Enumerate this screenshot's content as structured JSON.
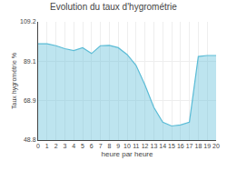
{
  "chart_data": {
    "type": "area",
    "title": "Evolution du taux d'hygrométrie",
    "x_label": "heure par heure",
    "y_label": "Taux hygrométrie %",
    "x": [
      0,
      1,
      2,
      3,
      4,
      5,
      6,
      7,
      8,
      9,
      10,
      11,
      12,
      13,
      14,
      15,
      16,
      17,
      18,
      19,
      20
    ],
    "values": [
      98.0,
      98.0,
      97.0,
      95.5,
      94.5,
      96.0,
      93.0,
      97.0,
      97.2,
      96.0,
      92.5,
      87.0,
      77.0,
      65.5,
      58.0,
      56.0,
      56.5,
      58.0,
      91.5,
      92.0,
      92.0
    ],
    "color": "#5bbcd6",
    "xlim": [
      0,
      20
    ],
    "xticks": [
      0,
      1,
      2,
      3,
      4,
      5,
      6,
      7,
      8,
      9,
      10,
      11,
      12,
      13,
      14,
      15,
      16,
      17,
      18,
      19,
      20
    ],
    "ylim": [
      48.8,
      109.2
    ],
    "yticks": [
      48.8,
      68.9,
      89.1,
      109.2
    ],
    "grid": true
  }
}
